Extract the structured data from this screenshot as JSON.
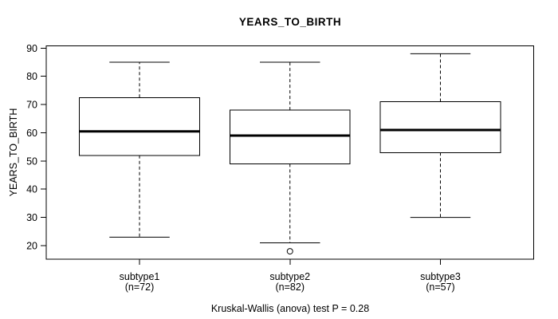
{
  "chart_data": {
    "type": "boxplot",
    "title": "YEARS_TO_BIRTH",
    "ylabel": "YEARS_TO_BIRTH",
    "caption": "Kruskal-Wallis (anova) test P = 0.28",
    "ylim": [
      15.2,
      90.8
    ],
    "yticks": [
      20,
      30,
      40,
      50,
      60,
      70,
      80,
      90
    ],
    "grid": false,
    "groups": [
      {
        "label": "subtype1",
        "sublabel": "(n=72)",
        "n": 72,
        "whisker_low": 23,
        "q1": 52,
        "median": 60.5,
        "q3": 72.5,
        "whisker_high": 85,
        "outliers": []
      },
      {
        "label": "subtype2",
        "sublabel": "(n=82)",
        "n": 82,
        "whisker_low": 21,
        "q1": 49,
        "median": 59,
        "q3": 68,
        "whisker_high": 85,
        "outliers": [
          18
        ]
      },
      {
        "label": "subtype3",
        "sublabel": "(n=57)",
        "n": 57,
        "whisker_low": 30,
        "q1": 53,
        "median": 61,
        "q3": 71,
        "whisker_high": 88,
        "outliers": []
      }
    ],
    "colors": {
      "line": "#000000",
      "box_fill": "#ffffff",
      "background": "#ffffff"
    }
  }
}
